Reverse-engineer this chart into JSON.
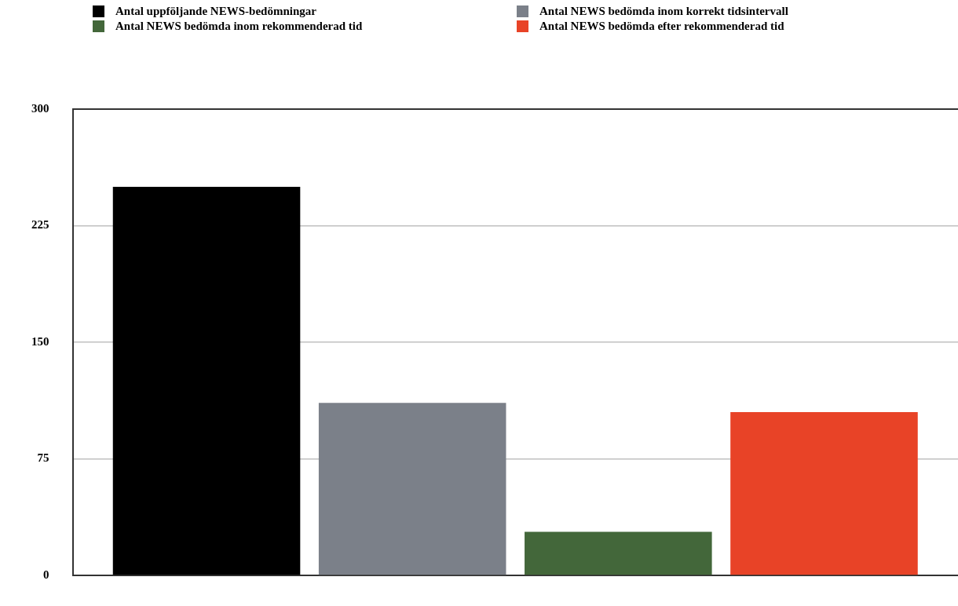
{
  "chart_data": {
    "type": "bar",
    "categories": [
      null
    ],
    "series": [
      {
        "name": "Antal uppföljande NEWS-bedömningar",
        "color": "#000000",
        "values": [
          250
        ]
      },
      {
        "name": "Antal NEWS bedömda inom korrekt tidsintervall",
        "color": "#7b8089",
        "values": [
          111
        ]
      },
      {
        "name": "Antal NEWS bedömda inom rekommenderad tid",
        "color": "#43673a",
        "values": [
          28
        ]
      },
      {
        "name": "Antal NEWS bedömda efter rekommenderad tid",
        "color": "#e84327",
        "values": [
          105
        ]
      }
    ],
    "ylim": [
      0,
      300
    ],
    "yticks": [
      0,
      75,
      150,
      225,
      300
    ],
    "grid": "y",
    "legend": "top"
  }
}
